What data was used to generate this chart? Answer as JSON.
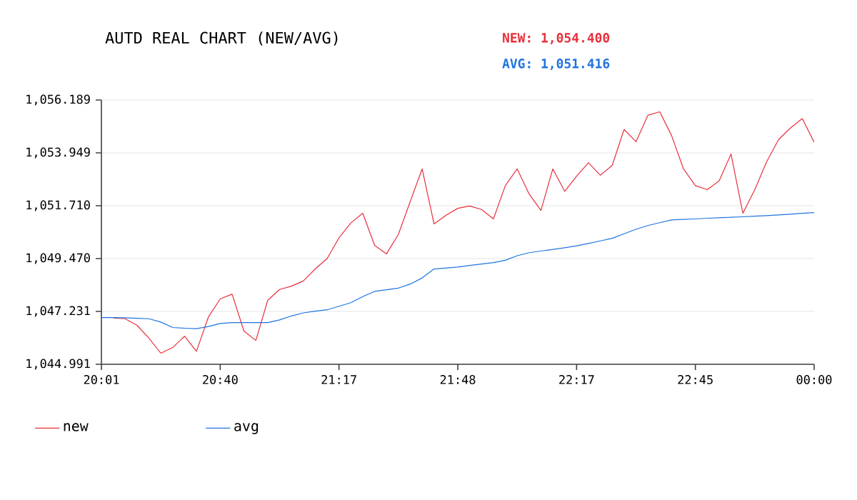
{
  "chart_data": {
    "type": "line",
    "title": "AUTD REAL CHART (NEW/AVG)",
    "annotations": [
      "NEW: 1,054.400",
      "AVG: 1,051.416"
    ],
    "categories": [
      "20:01",
      null,
      null,
      null,
      null,
      null,
      null,
      null,
      null,
      null,
      "20:40",
      null,
      null,
      null,
      null,
      null,
      null,
      null,
      null,
      null,
      "21:17",
      null,
      null,
      null,
      null,
      null,
      null,
      null,
      null,
      null,
      "21:48",
      null,
      null,
      null,
      null,
      null,
      null,
      null,
      null,
      null,
      "22:17",
      null,
      null,
      null,
      null,
      null,
      null,
      null,
      null,
      null,
      "22:45",
      null,
      null,
      null,
      null,
      null,
      null,
      null,
      null,
      null,
      "00:00"
    ],
    "series": [
      {
        "name": "new",
        "color": "#e8303c",
        "values": [
          null,
          1046.95,
          1046.92,
          1046.64,
          1046.1,
          1045.46,
          1045.7,
          1046.18,
          1045.54,
          1046.99,
          1047.76,
          1047.96,
          1046.4,
          1046.0,
          1047.7,
          1048.16,
          1048.3,
          1048.52,
          1049.03,
          1049.47,
          1050.35,
          1050.98,
          1051.39,
          1050.03,
          1049.67,
          1050.5,
          1051.89,
          1053.27,
          1050.94,
          1051.3,
          1051.6,
          1051.7,
          1051.55,
          1051.15,
          1052.56,
          1053.27,
          1052.21,
          1051.51,
          1053.27,
          1052.32,
          1052.96,
          1053.53,
          1053.0,
          1053.42,
          1054.94,
          1054.42,
          1055.54,
          1055.69,
          1054.68,
          1053.27,
          1052.56,
          1052.39,
          1052.76,
          1053.9,
          1051.39,
          1052.39,
          1053.57,
          1054.51,
          1055.0,
          1055.4,
          1054.4
        ]
      },
      {
        "name": "avg",
        "color": "#1f74e0",
        "values": [
          1046.97,
          1046.97,
          1046.96,
          1046.94,
          1046.92,
          1046.78,
          1046.55,
          1046.52,
          1046.5,
          1046.59,
          1046.72,
          1046.76,
          1046.76,
          1046.76,
          1046.76,
          1046.87,
          1047.04,
          1047.17,
          1047.24,
          1047.3,
          1047.45,
          1047.6,
          1047.86,
          1048.08,
          1048.15,
          1048.22,
          1048.39,
          1048.65,
          1049.03,
          1049.07,
          1049.11,
          1049.18,
          1049.24,
          1049.3,
          1049.4,
          1049.59,
          1049.72,
          1049.79,
          1049.86,
          1049.93,
          1050.01,
          1050.11,
          1050.22,
          1050.33,
          1050.52,
          1050.71,
          1050.87,
          1050.99,
          1051.11,
          1051.13,
          1051.15,
          1051.18,
          1051.2,
          1051.22,
          1051.24,
          1051.27,
          1051.29,
          1051.32,
          1051.35,
          1051.39,
          1051.42
        ]
      }
    ],
    "ylim": [
      1044.991,
      1056.189
    ],
    "yticks": [
      {
        "value": 1044.991,
        "label": "1,044.991"
      },
      {
        "value": 1047.231,
        "label": "1,047.231"
      },
      {
        "value": 1049.47,
        "label": "1,049.470"
      },
      {
        "value": 1051.71,
        "label": "1,051.710"
      },
      {
        "value": 1053.949,
        "label": "1,053.949"
      },
      {
        "value": 1056.189,
        "label": "1,056.189"
      }
    ],
    "grid": "y",
    "legend": "bottom left",
    "marker": "none",
    "line_style": "solid"
  }
}
